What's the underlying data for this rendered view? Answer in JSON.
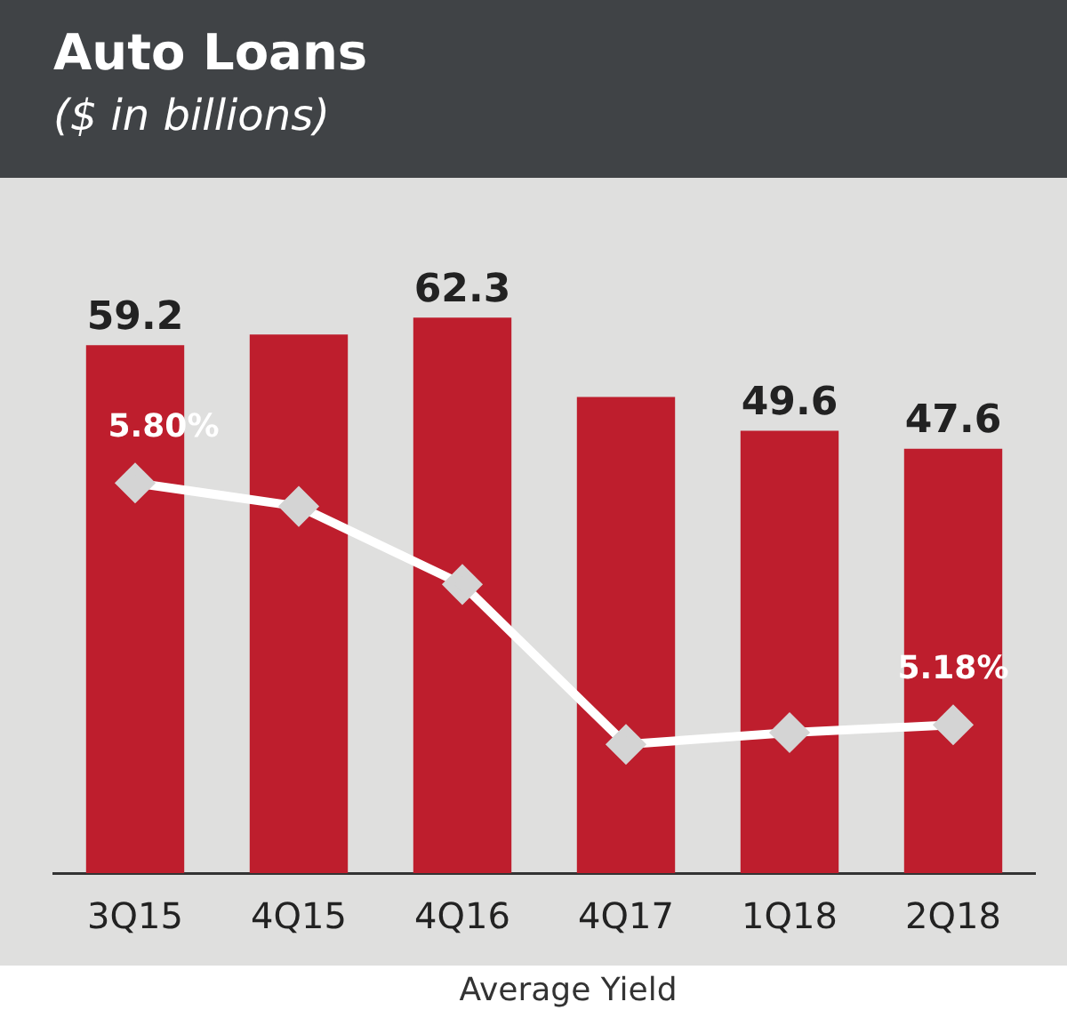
{
  "chart_data": {
    "type": "bar",
    "title": "Auto Loans",
    "subtitle": "($ in billions)",
    "categories": [
      "3Q15",
      "4Q15",
      "4Q16",
      "4Q17",
      "1Q18",
      "2Q18"
    ],
    "series": [
      {
        "color": "#be1e2d",
        "values": [
          59.2,
          60.4,
          62.3,
          53.4,
          49.6,
          47.6
        ],
        "value_labels": [
          "59.2",
          null,
          "62.3",
          null,
          "49.6",
          "47.6"
        ]
      },
      {
        "type": "line",
        "name": "Average Yield",
        "axis": "y2",
        "color": "#ffffff",
        "values": [
          5.8,
          5.74,
          5.54,
          5.13,
          5.16,
          5.18
        ],
        "value_labels": [
          "5.80%",
          null,
          null,
          null,
          null,
          "5.18%"
        ]
      }
    ],
    "tick_labels": "x",
    "grid": false,
    "legend": "bottom",
    "marker": "diamond",
    "line_style": "solid"
  }
}
